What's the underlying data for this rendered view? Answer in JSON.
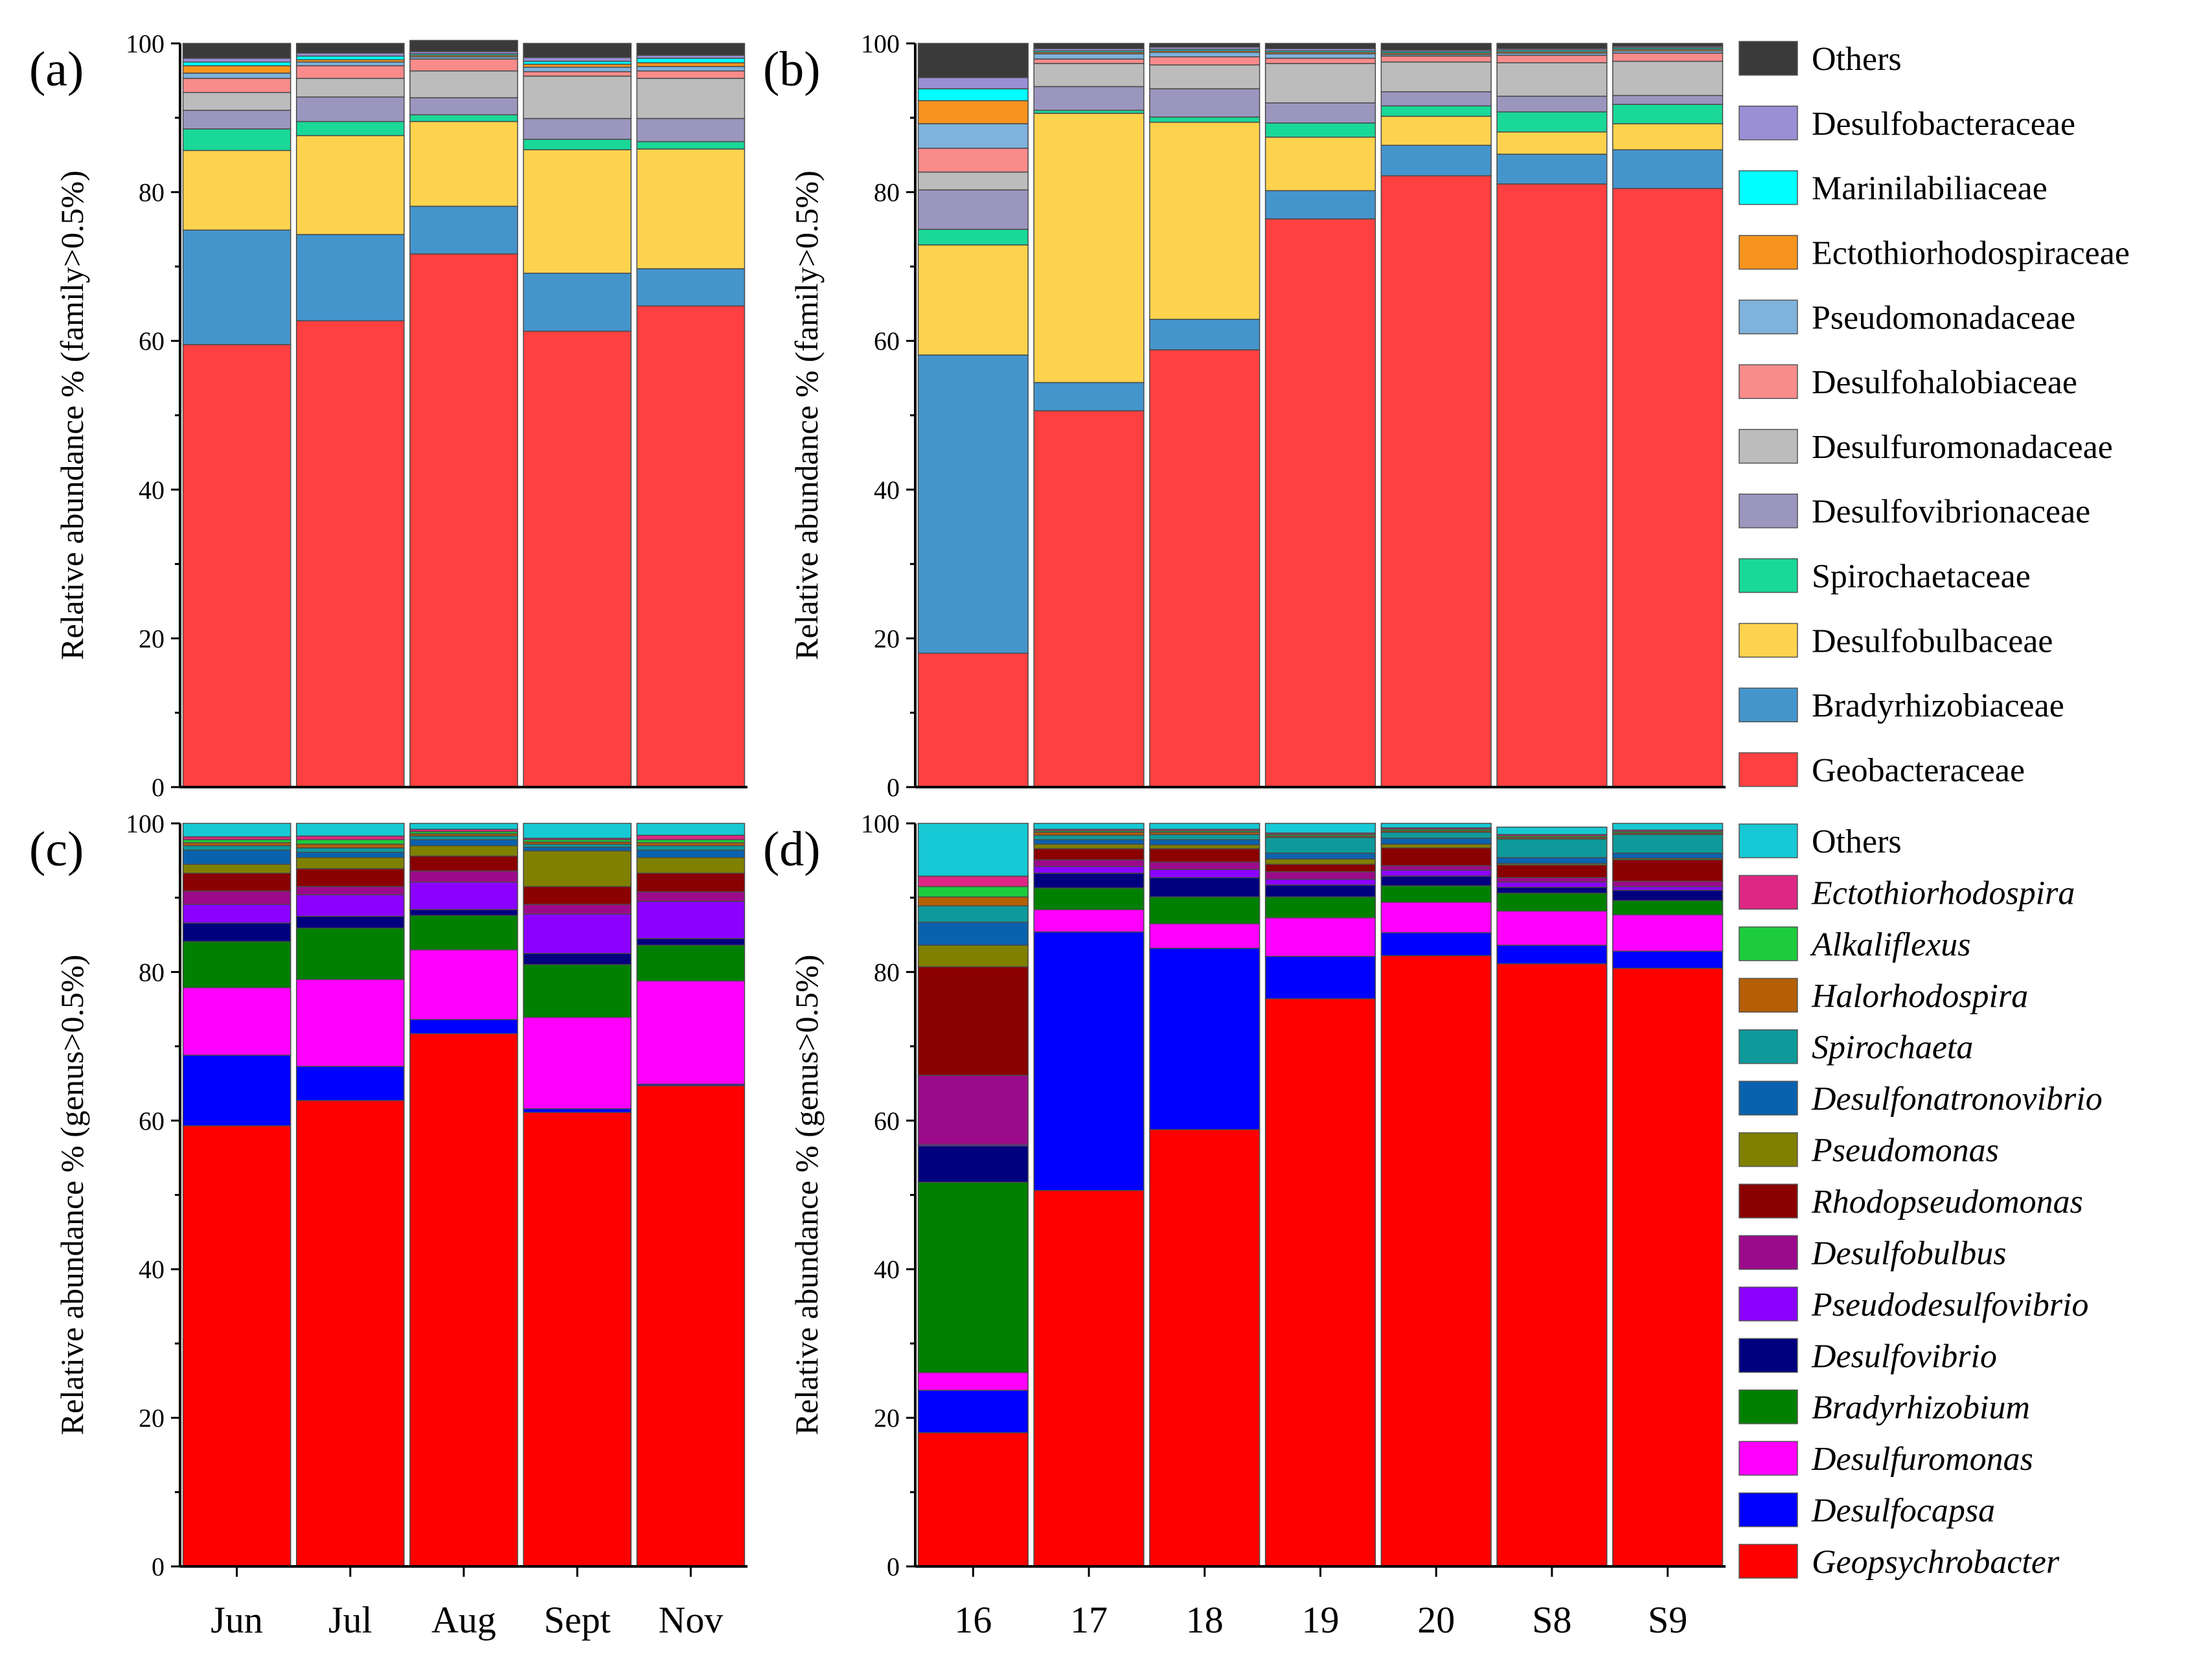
{
  "colors": {
    "family": {
      "Others": "#3a3a3a",
      "Desulfobacteraceae": "#9a8fd6",
      "Marinilabiliaceae": "#00ffff",
      "Ectothiorhodospiraceae": "#f7941d",
      "Pseudomonadaceae": "#7fb2dc",
      "Desulfohalobiaceae": "#f98b8b",
      "Desulfuromonadaceae": "#bcbcbc",
      "Desulfovibrionaceae": "#9b96be",
      "Spirochaetaceae": "#1ad898",
      "Desulfobulbaceae": "#fdd34e",
      "Bradyrhizobiaceae": "#4595cd",
      "Geobacteraceae": "#ff4040"
    },
    "genus": {
      "Others": "#17c9d4",
      "Ectothiorhodospira": "#de2784",
      "Alkaliflexus": "#1dcc3d",
      "Halorhodospira": "#b45f06",
      "Spirochaeta": "#0e9a9a",
      "Desulfonatronovibrio": "#0a62ae",
      "Pseudomonas": "#808000",
      "Rhodopseudomonas": "#8b0000",
      "Desulfobulbus": "#9b0a8a",
      "Pseudodesulfovibrio": "#8b00ff",
      "Desulfovibrio": "#00007f",
      "Bradyrhizobium": "#008000",
      "Desulfuromonas": "#ff00ff",
      "Desulfocapsa": "#0000ff",
      "Geopsychrobacter": "#ff0000"
    }
  },
  "chart_data": [
    {
      "panel": "(a)",
      "type": "bar",
      "stacked": true,
      "ylabel": "Relative abundance % (family>0.5%)",
      "ylim": [
        0,
        100
      ],
      "yticks": [
        0,
        20,
        40,
        60,
        80,
        100
      ],
      "categories": [
        "Jun",
        "Jul",
        "Aug",
        "Sept",
        "Nov"
      ],
      "series": [
        {
          "name": "Geobacteraceae",
          "values": [
            59.5,
            62.7,
            71.7,
            61.3,
            64.7
          ]
        },
        {
          "name": "Bradyrhizobiaceae",
          "values": [
            15.4,
            11.6,
            6.4,
            7.8,
            5.0
          ]
        },
        {
          "name": "Desulfobulbaceae",
          "values": [
            10.7,
            13.3,
            11.4,
            16.6,
            16.1
          ]
        },
        {
          "name": "Spirochaetaceae",
          "values": [
            2.9,
            1.9,
            0.9,
            1.4,
            1.0
          ]
        },
        {
          "name": "Desulfovibrionaceae",
          "values": [
            2.5,
            3.3,
            2.3,
            2.8,
            3.1
          ]
        },
        {
          "name": "Desulfuromonadaceae",
          "values": [
            2.4,
            2.5,
            3.6,
            5.7,
            5.4
          ]
        },
        {
          "name": "Desulfohalobiaceae",
          "values": [
            1.9,
            1.7,
            1.6,
            0.6,
            1.0
          ]
        },
        {
          "name": "Pseudomonadaceae",
          "values": [
            0.7,
            0.5,
            0.3,
            0.6,
            0.6
          ]
        },
        {
          "name": "Ectothiorhodospiraceae",
          "values": [
            1.0,
            0.3,
            0.2,
            0.4,
            0.5
          ]
        },
        {
          "name": "Marinilabiliaceae",
          "values": [
            0.5,
            0.5,
            0.2,
            0.4,
            0.6
          ]
        },
        {
          "name": "Desulfobacteraceae",
          "values": [
            0.5,
            0.4,
            0.3,
            0.5,
            0.4
          ]
        },
        {
          "name": "Others",
          "values": [
            2.0,
            1.3,
            1.5,
            1.9,
            1.6
          ]
        }
      ]
    },
    {
      "panel": "(b)",
      "type": "bar",
      "stacked": true,
      "ylabel": "Relative abundance % (family>0.5%)",
      "ylim": [
        0,
        100
      ],
      "yticks": [
        0,
        20,
        40,
        60,
        80,
        100
      ],
      "categories": [
        "16",
        "17",
        "18",
        "19",
        "20",
        "S8",
        "S9"
      ],
      "series": [
        {
          "name": "Geobacteraceae",
          "values": [
            18.0,
            50.6,
            58.8,
            76.4,
            82.2,
            81.1,
            80.5
          ]
        },
        {
          "name": "Bradyrhizobiaceae",
          "values": [
            40.1,
            3.8,
            4.1,
            3.8,
            4.1,
            4.0,
            5.2
          ]
        },
        {
          "name": "Desulfobulbaceae",
          "values": [
            14.8,
            36.2,
            26.5,
            7.2,
            3.9,
            3.0,
            3.5
          ]
        },
        {
          "name": "Spirochaetaceae",
          "values": [
            2.1,
            0.4,
            0.7,
            1.9,
            1.4,
            2.7,
            2.6
          ]
        },
        {
          "name": "Desulfovibrionaceae",
          "values": [
            5.3,
            3.2,
            3.8,
            2.7,
            1.9,
            2.1,
            1.2
          ]
        },
        {
          "name": "Desulfuromonadaceae",
          "values": [
            2.4,
            3.1,
            3.2,
            5.3,
            4.0,
            4.5,
            4.6
          ]
        },
        {
          "name": "Desulfohalobiaceae",
          "values": [
            3.2,
            0.6,
            1.1,
            0.7,
            0.8,
            1.0,
            1.1
          ]
        },
        {
          "name": "Pseudomonadaceae",
          "values": [
            3.3,
            0.7,
            0.6,
            0.6,
            0.2,
            0.3,
            0.3
          ]
        },
        {
          "name": "Ectothiorhodospiraceae",
          "values": [
            3.1,
            0.2,
            0.2,
            0.2,
            0.2,
            0.2,
            0.2
          ]
        },
        {
          "name": "Marinilabiliaceae",
          "values": [
            1.6,
            0.2,
            0.2,
            0.2,
            0.2,
            0.2,
            0.2
          ]
        },
        {
          "name": "Desulfobacteraceae",
          "values": [
            1.5,
            0.3,
            0.3,
            0.3,
            0.2,
            0.2,
            0.2
          ]
        },
        {
          "name": "Others",
          "values": [
            4.6,
            0.7,
            0.5,
            0.7,
            0.9,
            0.7,
            0.4
          ]
        }
      ]
    },
    {
      "panel": "(c)",
      "type": "bar",
      "stacked": true,
      "ylabel": "Relative abundance % (genus>0.5%)",
      "ylim": [
        0,
        100
      ],
      "yticks": [
        0,
        20,
        40,
        60,
        80,
        100
      ],
      "categories": [
        "Jun",
        "Jul",
        "Aug",
        "Sept",
        "Nov"
      ],
      "series": [
        {
          "name": "Geopsychrobacter",
          "values": [
            59.3,
            62.7,
            71.7,
            61.1,
            64.7
          ]
        },
        {
          "name": "Desulfocapsa",
          "values": [
            9.5,
            4.6,
            1.9,
            0.5,
            0.2
          ]
        },
        {
          "name": "Desulfuromonas",
          "values": [
            9.1,
            11.7,
            9.4,
            12.3,
            13.9
          ]
        },
        {
          "name": "Bradyrhizobium",
          "values": [
            6.2,
            6.9,
            4.6,
            7.1,
            4.8
          ]
        },
        {
          "name": "Desulfovibrio",
          "values": [
            2.5,
            1.6,
            0.8,
            1.5,
            0.9
          ]
        },
        {
          "name": "Pseudodesulfovibrio",
          "values": [
            2.5,
            2.9,
            3.7,
            5.3,
            5.0
          ]
        },
        {
          "name": "Desulfobulbus",
          "values": [
            1.8,
            1.1,
            1.5,
            1.3,
            1.3
          ]
        },
        {
          "name": "Rhodopseudomonas",
          "values": [
            2.4,
            2.4,
            2.0,
            2.4,
            2.5
          ]
        },
        {
          "name": "Pseudomonas",
          "values": [
            1.2,
            1.5,
            1.4,
            4.8,
            2.1
          ]
        },
        {
          "name": "Desulfonatronovibrio",
          "values": [
            1.9,
            0.7,
            0.8,
            0.5,
            1.0
          ]
        },
        {
          "name": "Spirochaeta",
          "values": [
            0.6,
            0.6,
            0.5,
            0.4,
            0.6
          ]
        },
        {
          "name": "Halorhodospira",
          "values": [
            0.4,
            0.5,
            0.3,
            0.3,
            0.4
          ]
        },
        {
          "name": "Alkaliflexus",
          "values": [
            0.4,
            0.6,
            0.3,
            0.3,
            0.4
          ]
        },
        {
          "name": "Ectothiorhodospira",
          "values": [
            0.4,
            0.5,
            0.3,
            0.2,
            0.6
          ]
        },
        {
          "name": "Others",
          "values": [
            1.8,
            1.7,
            0.8,
            2.0,
            1.6
          ]
        }
      ]
    },
    {
      "panel": "(d)",
      "type": "bar",
      "stacked": true,
      "ylabel": "Relative abundance % (genus>0.5%)",
      "ylim": [
        0,
        100
      ],
      "yticks": [
        0,
        20,
        40,
        60,
        80,
        100
      ],
      "categories": [
        "16",
        "17",
        "18",
        "19",
        "20",
        "S8",
        "S9"
      ],
      "series": [
        {
          "name": "Geopsychrobacter",
          "values": [
            18.0,
            50.6,
            58.8,
            76.4,
            82.2,
            81.1,
            80.5
          ]
        },
        {
          "name": "Desulfocapsa",
          "values": [
            5.7,
            34.8,
            24.4,
            5.7,
            3.1,
            2.5,
            2.3
          ]
        },
        {
          "name": "Desulfuromonas",
          "values": [
            2.4,
            3.0,
            3.3,
            5.2,
            4.1,
            4.6,
            4.9
          ]
        },
        {
          "name": "Bradyrhizobium",
          "values": [
            25.6,
            2.9,
            3.6,
            2.8,
            2.2,
            2.4,
            1.9
          ]
        },
        {
          "name": "Desulfovibrio",
          "values": [
            4.9,
            2.0,
            2.6,
            1.6,
            1.3,
            0.8,
            1.4
          ]
        },
        {
          "name": "Pseudodesulfovibrio",
          "values": [
            0.2,
            0.9,
            1.1,
            0.8,
            0.8,
            0.7,
            0.5
          ]
        },
        {
          "name": "Desulfobulbus",
          "values": [
            9.3,
            0.9,
            1.0,
            1.0,
            0.6,
            0.6,
            0.7
          ]
        },
        {
          "name": "Rhodopseudomonas",
          "values": [
            14.6,
            1.5,
            1.8,
            1.0,
            2.4,
            1.7,
            2.9
          ]
        },
        {
          "name": "Pseudomonas",
          "values": [
            2.9,
            0.6,
            0.5,
            0.7,
            0.5,
            0.2,
            0.2
          ]
        },
        {
          "name": "Desulfonatronovibrio",
          "values": [
            3.1,
            0.6,
            0.7,
            0.8,
            0.8,
            0.8,
            0.7
          ]
        },
        {
          "name": "Spirochaeta",
          "values": [
            2.2,
            0.6,
            0.7,
            2.1,
            0.8,
            2.5,
            2.5
          ]
        },
        {
          "name": "Halorhodospira",
          "values": [
            1.2,
            0.4,
            0.3,
            0.2,
            0.2,
            0.2,
            0.2
          ]
        },
        {
          "name": "Alkaliflexus",
          "values": [
            1.4,
            0.2,
            0.2,
            0.2,
            0.2,
            0.2,
            0.2
          ]
        },
        {
          "name": "Ectothiorhodospira",
          "values": [
            1.4,
            0.2,
            0.2,
            0.2,
            0.2,
            0.2,
            0.2
          ]
        },
        {
          "name": "Others",
          "values": [
            7.1,
            0.8,
            0.8,
            1.3,
            0.6,
            1.0,
            0.9
          ]
        }
      ]
    }
  ],
  "legends": {
    "family": {
      "title": "",
      "entries": [
        "Others",
        "Desulfobacteraceae",
        "Marinilabiliaceae",
        "Ectothiorhodospiraceae",
        "Pseudomonadaceae",
        "Desulfohalobiaceae",
        "Desulfuromonadaceae",
        "Desulfovibrionaceae",
        "Spirochaetaceae",
        "Desulfobulbaceae",
        "Bradyrhizobiaceae",
        "Geobacteraceae"
      ]
    },
    "genus": {
      "title": "",
      "entries": [
        "Others",
        "Ectothiorhodospira",
        "Alkaliflexus",
        "Halorhodospira",
        "Spirochaeta",
        "Desulfonatronovibrio",
        "Pseudomonas",
        "Rhodopseudomonas",
        "Desulfobulbus",
        "Pseudodesulfovibrio",
        "Desulfovibrio",
        "Bradyrhizobium",
        "Desulfuromonas",
        "Desulfocapsa",
        "Geopsychrobacter"
      ],
      "italic_except": [
        "Others"
      ]
    }
  }
}
